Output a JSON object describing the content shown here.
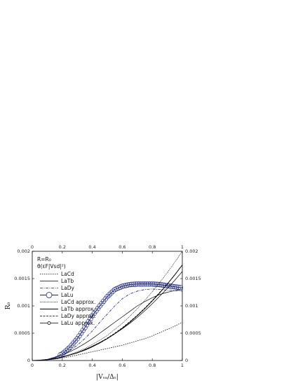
{
  "chart_data": {
    "type": "line",
    "xlabel": "|Vₛₐ/Δₛ|",
    "ylabel": "R₀",
    "xlim": [
      0,
      1
    ],
    "ylim": [
      0,
      0.002
    ],
    "x_ticks": [
      "0",
      "0.2",
      "0.4",
      "0.6",
      "0.8",
      "1"
    ],
    "x_tick_values": [
      0,
      0.2,
      0.4,
      0.6,
      0.8,
      1
    ],
    "y_ticks": [
      "0",
      "0.0005",
      "0.001",
      "0.0015",
      "0.002"
    ],
    "y_tick_values": [
      0,
      0.0005,
      0.001,
      0.0015,
      0.002
    ],
    "grid": false,
    "legend_position": "top-left",
    "annotation_lines": [
      "R=R₀",
      "θ(εF|Vsd|²)"
    ],
    "x": [
      0,
      0.05,
      0.1,
      0.15,
      0.2,
      0.25,
      0.3,
      0.35,
      0.4,
      0.45,
      0.5,
      0.55,
      0.6,
      0.65,
      0.7,
      0.75,
      0.8,
      0.85,
      0.9,
      0.95,
      1.0
    ],
    "series": [
      {
        "name": "LaCd",
        "color": "#000000",
        "dash": "1.5,1.5",
        "width": 0.8,
        "values": [
          0,
          3e-06,
          1.2e-05,
          2.6e-05,
          4.6e-05,
          7e-05,
          0.0001,
          0.00013,
          0.00016,
          0.00019,
          0.00022,
          0.00025,
          0.00028,
          0.00032,
          0.00036,
          0.0004,
          0.00045,
          0.00051,
          0.00057,
          0.00063,
          0.0007
        ]
      },
      {
        "name": "LaTb",
        "color": "#000000",
        "dash": "",
        "width": 0.7,
        "values": [
          0,
          5e-06,
          2e-05,
          5e-05,
          0.0001,
          0.00016,
          0.00023,
          0.00031,
          0.0004,
          0.0005,
          0.0006,
          0.0007,
          0.0008,
          0.0009,
          0.001,
          0.00108,
          0.00115,
          0.00121,
          0.00125,
          0.00128,
          0.0013
        ]
      },
      {
        "name": "LaDy",
        "color": "#1a237e",
        "dash": "4,1.5,1,1.5",
        "width": 0.8,
        "values": [
          0,
          5e-06,
          2e-05,
          5e-05,
          0.0001,
          0.00018,
          0.00028,
          0.0004,
          0.00054,
          0.0007,
          0.00085,
          0.001,
          0.00113,
          0.00122,
          0.00127,
          0.0013,
          0.00131,
          0.0013,
          0.00129,
          0.00128,
          0.00127
        ]
      },
      {
        "name": "LaLu",
        "color": "#1a237e",
        "dash": "",
        "width": 0.9,
        "marker": "open-circle",
        "values": [
          0,
          5e-06,
          2e-05,
          6e-05,
          0.00012,
          0.00024,
          0.0004,
          0.0006,
          0.00082,
          0.001,
          0.00117,
          0.0013,
          0.00136,
          0.00139,
          0.0014,
          0.0014,
          0.0014,
          0.00139,
          0.00137,
          0.00135,
          0.00133
        ]
      },
      {
        "name": "LaCd approx.",
        "color": "#000000",
        "dash": "1,1",
        "width": 0.7,
        "values": [
          0,
          4e-06,
          1.7e-05,
          4e-05,
          7e-05,
          0.00011,
          0.00016,
          0.00022,
          0.00029,
          0.00037,
          0.00046,
          0.00057,
          0.00068,
          0.00081,
          0.00095,
          0.0011,
          0.00126,
          0.00143,
          0.00161,
          0.0018,
          0.002
        ]
      },
      {
        "name": "LaTb approx.",
        "color": "#000000",
        "dash": "",
        "width": 0.9,
        "values": [
          0,
          3e-06,
          1.4e-05,
          3e-05,
          6e-05,
          0.0001,
          0.00014,
          0.00019,
          0.00025,
          0.00032,
          0.0004,
          0.00049,
          0.00059,
          0.0007,
          0.00082,
          0.00095,
          0.00109,
          0.00124,
          0.0014,
          0.00157,
          0.00175
        ]
      },
      {
        "name": "LaDy approx.",
        "color": "#000000",
        "dash": "3,1.5",
        "width": 0.8,
        "values": [
          0,
          4e-06,
          1.6e-05,
          3.6e-05,
          6.4e-05,
          0.0001,
          0.00014,
          0.0002,
          0.00026,
          0.00033,
          0.00041,
          0.0005,
          0.0006,
          0.00071,
          0.00083,
          0.00096,
          0.0011,
          0.00125,
          0.0014,
          0.00157,
          0.00175
        ]
      },
      {
        "name": "LaLu approx.",
        "color": "#000000",
        "dash": "",
        "width": 0.7,
        "marker": "small-open-circle",
        "values": [
          0,
          4e-06,
          1.6e-05,
          3.6e-05,
          6.4e-05,
          0.0001,
          0.000145,
          0.0002,
          0.00026,
          0.00033,
          0.0004,
          0.00049,
          0.00058,
          0.00068,
          0.00079,
          0.00091,
          0.00104,
          0.00118,
          0.00132,
          0.00147,
          0.00163
        ]
      }
    ]
  }
}
